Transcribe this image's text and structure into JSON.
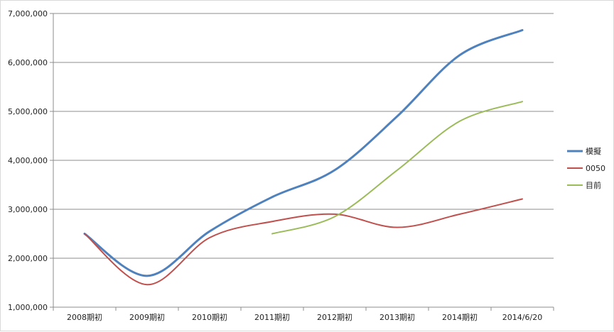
{
  "chart_data": {
    "type": "line",
    "title": "",
    "xlabel": "",
    "ylabel": "",
    "categories": [
      "2008期初",
      "2009期初",
      "2010期初",
      "2011期初",
      "2012期初",
      "2013期初",
      "2014期初",
      "2014/6/20"
    ],
    "ylim": [
      1000000,
      7000000
    ],
    "yticks": [
      "1,000,000",
      "2,000,000",
      "3,000,000",
      "4,000,000",
      "5,000,000",
      "6,000,000",
      "7,000,000"
    ],
    "ytick_values": [
      1000000,
      2000000,
      3000000,
      4000000,
      5000000,
      6000000,
      7000000
    ],
    "grid": true,
    "legend_position": "right",
    "series": [
      {
        "name": "模擬",
        "color": "#4f81bd",
        "width": 3,
        "values": [
          2500000,
          1640000,
          2550000,
          3250000,
          3800000,
          4900000,
          6150000,
          6660000
        ]
      },
      {
        "name": "0050",
        "color": "#c0504d",
        "width": 2,
        "values": [
          2500000,
          1460000,
          2420000,
          2750000,
          2900000,
          2630000,
          2900000,
          3210000
        ]
      },
      {
        "name": "目前",
        "color": "#9bbb59",
        "width": 2,
        "values": [
          null,
          null,
          null,
          2500000,
          2850000,
          3800000,
          4800000,
          5200000
        ]
      }
    ]
  }
}
